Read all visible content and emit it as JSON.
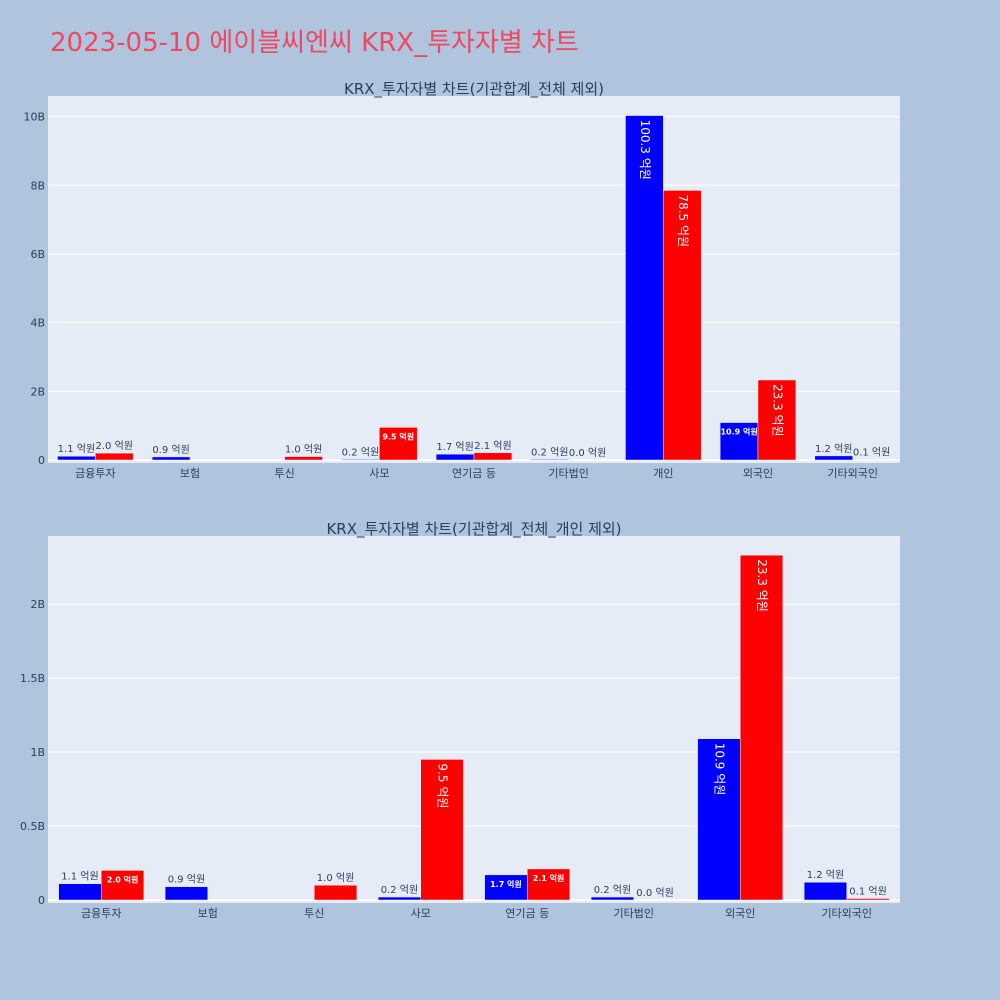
{
  "page": {
    "title": "2023-05-10 에이블씨엔씨 KRX_투자자별 차트",
    "background_color": "#b0c4de",
    "plot_background_color": "#e5ecf6",
    "title_color": "#ef4860"
  },
  "chart_data": [
    {
      "type": "bar",
      "title": "KRX_투자자별 차트(기관합계_전체 제외)",
      "categories": [
        "금융투자",
        "보험",
        "투신",
        "사모",
        "연기금 등",
        "기타법인",
        "개인",
        "외국인",
        "기타외국인"
      ],
      "ylim": [
        0,
        10.6
      ],
      "y_ticks": [
        0,
        2,
        4,
        6,
        8,
        10
      ],
      "y_tick_labels": [
        "0",
        "2B",
        "4B",
        "6B",
        "8B",
        "10B"
      ],
      "grid": true,
      "legend": "none",
      "series": [
        {
          "color": "#0000ff",
          "values": [
            0.11,
            0.09,
            0,
            0.02,
            0.17,
            0.02,
            10.03,
            1.09,
            0.12
          ],
          "labels": [
            "1.1 억원",
            "0.9 억원",
            "",
            "0.2 억원",
            "1.7 억원",
            "0.2 억원",
            "100.3 억원",
            "10.9 억원",
            "1.2 억원"
          ]
        },
        {
          "color": "#ff0000",
          "values": [
            0.2,
            0,
            0.1,
            0.95,
            0.21,
            0.0,
            7.85,
            2.33,
            0.01
          ],
          "labels": [
            "2.0 억원",
            "",
            "1.0 억원",
            "9.5 억원",
            "2.1 억원",
            "0.0 억원",
            "78.5 억원",
            "23.3 억원",
            "0.1 억원"
          ]
        }
      ]
    },
    {
      "type": "bar",
      "title": "KRX_투자자별 차트(기관합계_전체_개인 제외)",
      "categories": [
        "금융투자",
        "보험",
        "투신",
        "사모",
        "연기금 등",
        "기타법인",
        "외국인",
        "기타외국인"
      ],
      "ylim": [
        0,
        2.46
      ],
      "y_ticks": [
        0,
        0.5,
        1,
        1.5,
        2
      ],
      "y_tick_labels": [
        "0",
        "0.5B",
        "1B",
        "1.5B",
        "2B"
      ],
      "grid": true,
      "legend": "none",
      "series": [
        {
          "color": "#0000ff",
          "values": [
            0.11,
            0.09,
            0,
            0.02,
            0.17,
            0.02,
            1.09,
            0.12
          ],
          "labels": [
            "1.1 억원",
            "0.9 억원",
            "",
            "0.2 억원",
            "1.7 억원",
            "0.2 억원",
            "10.9 억원",
            "1.2 억원"
          ]
        },
        {
          "color": "#ff0000",
          "values": [
            0.2,
            0,
            0.1,
            0.95,
            0.21,
            0.0,
            2.33,
            0.01
          ],
          "labels": [
            "2.0 억원",
            "",
            "1.0 억원",
            "9.5 억원",
            "2.1 억원",
            "0.0 억원",
            "23.3 억원",
            "0.1 억원"
          ]
        }
      ]
    }
  ]
}
